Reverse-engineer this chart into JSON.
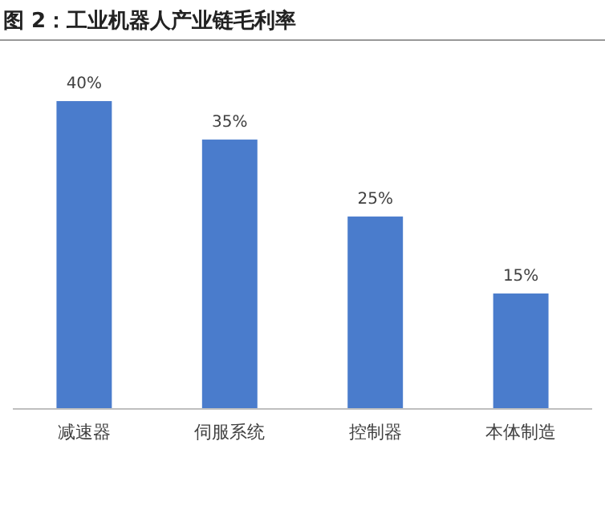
{
  "chart_data": {
    "type": "bar",
    "title": "图 2：工业机器人产业链毛利率",
    "categories": [
      "减速器",
      "伺服系统",
      "控制器",
      "本体制造"
    ],
    "values": [
      40,
      35,
      25,
      15
    ],
    "value_labels": [
      "40%",
      "35%",
      "25%",
      "15%"
    ],
    "color": "#4a7ccc"
  }
}
